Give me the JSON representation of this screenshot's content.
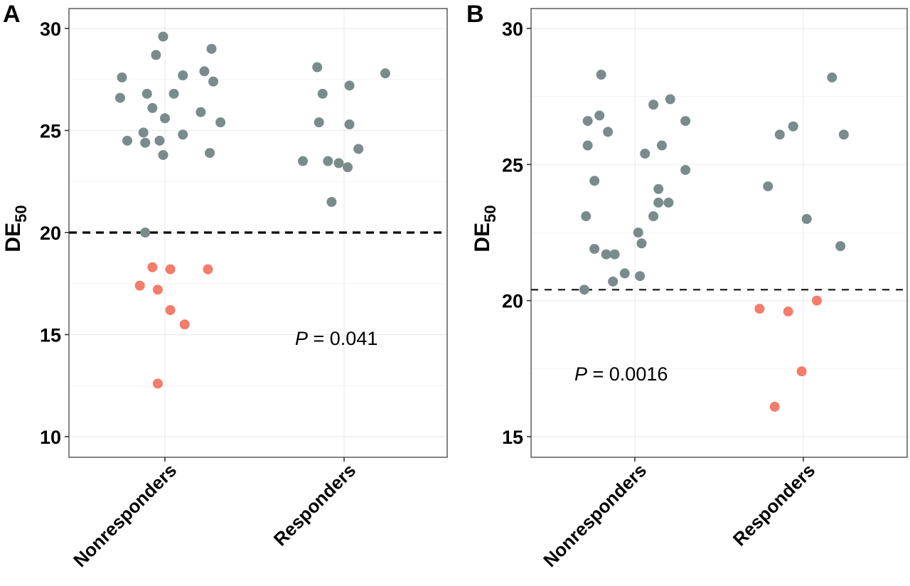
{
  "chart_data": [
    {
      "type": "scatter",
      "panel_label": "A",
      "title": "",
      "xlabel": "",
      "ylabel": "DE",
      "ylabel_subscript": "50",
      "categories": [
        "Nonresponders",
        "Responders"
      ],
      "ylim": [
        9,
        31
      ],
      "yticks": [
        10,
        15,
        20,
        25,
        30
      ],
      "grid": true,
      "threshold": 20,
      "threshold_style": "dashed-thick",
      "annotation": {
        "prefix": "P",
        "text": " = 0.041",
        "x_category_pos": 1.27,
        "y": 14.8
      },
      "colors": {
        "above": "#7a8b8b",
        "below": "#f47c6a",
        "threshold": "#000000"
      },
      "series": [
        {
          "name": "Nonresponders",
          "points": [
            {
              "jitter": -0.01,
              "y": 29.6
            },
            {
              "jitter": -0.05,
              "y": 28.7
            },
            {
              "jitter": 0.26,
              "y": 29.0
            },
            {
              "jitter": -0.24,
              "y": 27.6
            },
            {
              "jitter": 0.1,
              "y": 27.7
            },
            {
              "jitter": 0.22,
              "y": 27.9
            },
            {
              "jitter": 0.27,
              "y": 27.4
            },
            {
              "jitter": -0.25,
              "y": 26.6
            },
            {
              "jitter": -0.1,
              "y": 26.8
            },
            {
              "jitter": 0.05,
              "y": 26.8
            },
            {
              "jitter": -0.07,
              "y": 26.1
            },
            {
              "jitter": 0.0,
              "y": 25.6
            },
            {
              "jitter": 0.2,
              "y": 25.9
            },
            {
              "jitter": 0.31,
              "y": 25.4
            },
            {
              "jitter": -0.12,
              "y": 24.9
            },
            {
              "jitter": -0.21,
              "y": 24.5
            },
            {
              "jitter": -0.11,
              "y": 24.4
            },
            {
              "jitter": -0.03,
              "y": 24.5
            },
            {
              "jitter": 0.1,
              "y": 24.8
            },
            {
              "jitter": -0.01,
              "y": 23.8
            },
            {
              "jitter": 0.25,
              "y": 23.9
            },
            {
              "jitter": -0.11,
              "y": 20.0
            },
            {
              "jitter": -0.07,
              "y": 18.3
            },
            {
              "jitter": 0.03,
              "y": 18.2
            },
            {
              "jitter": 0.24,
              "y": 18.2
            },
            {
              "jitter": -0.14,
              "y": 17.4
            },
            {
              "jitter": -0.04,
              "y": 17.2
            },
            {
              "jitter": 0.03,
              "y": 16.2
            },
            {
              "jitter": 0.11,
              "y": 15.5
            },
            {
              "jitter": -0.04,
              "y": 12.6
            }
          ]
        },
        {
          "name": "Responders",
          "points": [
            {
              "jitter": -0.15,
              "y": 28.1
            },
            {
              "jitter": 0.23,
              "y": 27.8
            },
            {
              "jitter": 0.03,
              "y": 27.2
            },
            {
              "jitter": -0.12,
              "y": 26.8
            },
            {
              "jitter": -0.14,
              "y": 25.4
            },
            {
              "jitter": 0.03,
              "y": 25.3
            },
            {
              "jitter": 0.08,
              "y": 24.1
            },
            {
              "jitter": -0.23,
              "y": 23.5
            },
            {
              "jitter": -0.09,
              "y": 23.5
            },
            {
              "jitter": -0.03,
              "y": 23.4
            },
            {
              "jitter": 0.02,
              "y": 23.2
            },
            {
              "jitter": -0.07,
              "y": 21.5
            }
          ]
        }
      ]
    },
    {
      "type": "scatter",
      "panel_label": "B",
      "title": "",
      "xlabel": "",
      "ylabel": "DE",
      "ylabel_subscript": "50",
      "categories": [
        "Nonresponders",
        "Responders"
      ],
      "ylim": [
        14.3,
        30.7
      ],
      "yticks": [
        15,
        20,
        25,
        30
      ],
      "grid": true,
      "threshold": 20.4,
      "threshold_style": "dashed-thin",
      "annotation": {
        "prefix": "P",
        "text": " = 0.0016",
        "x_category_pos": 0.0,
        "y": 17.3
      },
      "colors": {
        "above": "#7a8b8b",
        "below": "#f47c6a",
        "threshold": "#000000"
      },
      "series": [
        {
          "name": "Nonresponders",
          "points": [
            {
              "jitter": -0.2,
              "y": 28.3
            },
            {
              "jitter": -0.28,
              "y": 26.6
            },
            {
              "jitter": -0.21,
              "y": 26.8
            },
            {
              "jitter": -0.16,
              "y": 26.2
            },
            {
              "jitter": -0.28,
              "y": 25.7
            },
            {
              "jitter": -0.24,
              "y": 24.4
            },
            {
              "jitter": -0.29,
              "y": 23.1
            },
            {
              "jitter": -0.24,
              "y": 21.9
            },
            {
              "jitter": -0.17,
              "y": 21.7
            },
            {
              "jitter": -0.12,
              "y": 21.7
            },
            {
              "jitter": -0.13,
              "y": 20.7
            },
            {
              "jitter": -0.06,
              "y": 21.0
            },
            {
              "jitter": -0.3,
              "y": 20.4
            },
            {
              "jitter": 0.11,
              "y": 27.2
            },
            {
              "jitter": 0.21,
              "y": 27.4
            },
            {
              "jitter": 0.06,
              "y": 25.4
            },
            {
              "jitter": 0.16,
              "y": 25.7
            },
            {
              "jitter": 0.3,
              "y": 26.6
            },
            {
              "jitter": 0.14,
              "y": 24.1
            },
            {
              "jitter": 0.3,
              "y": 24.8
            },
            {
              "jitter": 0.14,
              "y": 23.6
            },
            {
              "jitter": 0.2,
              "y": 23.6
            },
            {
              "jitter": 0.11,
              "y": 23.1
            },
            {
              "jitter": 0.02,
              "y": 22.5
            },
            {
              "jitter": 0.04,
              "y": 22.1
            },
            {
              "jitter": 0.03,
              "y": 20.9
            }
          ]
        },
        {
          "name": "Responders",
          "points": [
            {
              "jitter": 0.17,
              "y": 28.2
            },
            {
              "jitter": -0.14,
              "y": 26.1
            },
            {
              "jitter": -0.06,
              "y": 26.4
            },
            {
              "jitter": 0.24,
              "y": 26.1
            },
            {
              "jitter": -0.21,
              "y": 24.2
            },
            {
              "jitter": 0.02,
              "y": 23.0
            },
            {
              "jitter": 0.22,
              "y": 22.0
            },
            {
              "jitter": 0.08,
              "y": 20.0
            },
            {
              "jitter": -0.26,
              "y": 19.7
            },
            {
              "jitter": -0.09,
              "y": 19.6
            },
            {
              "jitter": -0.01,
              "y": 17.4
            },
            {
              "jitter": -0.17,
              "y": 16.1
            }
          ]
        }
      ]
    }
  ]
}
